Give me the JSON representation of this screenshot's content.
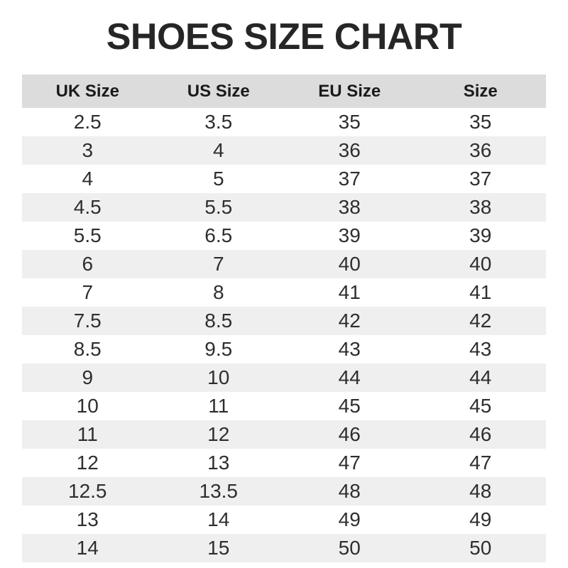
{
  "page": {
    "title": "SHOES SIZE CHART"
  },
  "chart_data": {
    "type": "table",
    "title": "SHOES SIZE CHART",
    "columns": [
      "UK Size",
      "US Size",
      "EU Size",
      "Size"
    ],
    "rows": [
      [
        "2.5",
        "3.5",
        "35",
        "35"
      ],
      [
        "3",
        "4",
        "36",
        "36"
      ],
      [
        "4",
        "5",
        "37",
        "37"
      ],
      [
        "4.5",
        "5.5",
        "38",
        "38"
      ],
      [
        "5.5",
        "6.5",
        "39",
        "39"
      ],
      [
        "6",
        "7",
        "40",
        "40"
      ],
      [
        "7",
        "8",
        "41",
        "41"
      ],
      [
        "7.5",
        "8.5",
        "42",
        "42"
      ],
      [
        "8.5",
        "9.5",
        "43",
        "43"
      ],
      [
        "9",
        "10",
        "44",
        "44"
      ],
      [
        "10",
        "11",
        "45",
        "45"
      ],
      [
        "11",
        "12",
        "46",
        "46"
      ],
      [
        "12",
        "13",
        "47",
        "47"
      ],
      [
        "12.5",
        "13.5",
        "48",
        "48"
      ],
      [
        "13",
        "14",
        "49",
        "49"
      ],
      [
        "14",
        "15",
        "50",
        "50"
      ]
    ],
    "layout": {
      "grid": "off",
      "row_striping": "alternating",
      "first_row_background": "white"
    }
  },
  "colors": {
    "page_bg": "#ffffff",
    "title_text": "#262626",
    "header_bg": "#dcdcdc",
    "header_text": "#1a1a1a",
    "row_bg": "#ffffff",
    "row_alt_bg": "#efefef",
    "data_text": "#2e2e2e"
  }
}
